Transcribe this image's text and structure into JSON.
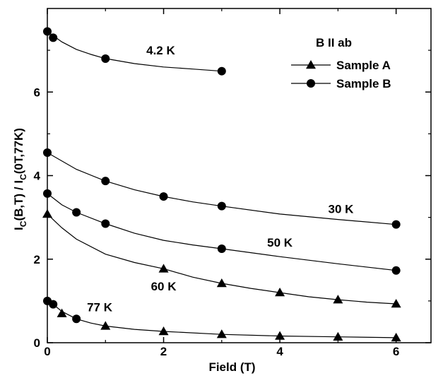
{
  "chart_data": {
    "type": "line",
    "title": "",
    "xlabel": "Field (T)",
    "ylabel_parts": [
      "I",
      "C",
      "(B,T) / I",
      "C",
      "(0T,77K)"
    ],
    "xlim": [
      0,
      6.6
    ],
    "ylim": [
      0,
      8
    ],
    "x_ticks": [
      0,
      2,
      4,
      6
    ],
    "x_tick_labels": [
      "0",
      "2",
      "4",
      "6"
    ],
    "y_ticks": [
      0,
      2,
      4,
      6
    ],
    "y_tick_labels": [
      "0",
      "2",
      "4",
      "6"
    ],
    "grid": false,
    "legend": {
      "title": "B II ab",
      "placement": "top-right",
      "entries": [
        {
          "label": "Sample A",
          "marker": "triangle"
        },
        {
          "label": "Sample B",
          "marker": "circle"
        }
      ]
    },
    "series": [
      {
        "label": "4.2 K",
        "marker": "circle",
        "x": [
          0,
          0.1,
          1,
          3
        ],
        "y": [
          7.45,
          7.3,
          6.8,
          6.5
        ],
        "curve": [
          [
            0,
            7.45
          ],
          [
            0.25,
            7.2
          ],
          [
            0.5,
            7.02
          ],
          [
            0.75,
            6.9
          ],
          [
            1,
            6.8
          ],
          [
            1.5,
            6.68
          ],
          [
            2,
            6.6
          ],
          [
            2.5,
            6.55
          ],
          [
            3,
            6.5
          ]
        ]
      },
      {
        "label": "30 K",
        "marker": "circle",
        "x": [
          0,
          1,
          2,
          3,
          6
        ],
        "y": [
          4.55,
          3.87,
          3.5,
          3.27,
          2.83
        ],
        "curve": [
          [
            0,
            4.55
          ],
          [
            0.5,
            4.15
          ],
          [
            1,
            3.87
          ],
          [
            1.5,
            3.66
          ],
          [
            2,
            3.5
          ],
          [
            2.5,
            3.37
          ],
          [
            3,
            3.27
          ],
          [
            4,
            3.08
          ],
          [
            5,
            2.95
          ],
          [
            6,
            2.83
          ]
        ]
      },
      {
        "label": "50 K",
        "marker": "circle",
        "x": [
          0,
          0.5,
          1,
          3,
          6
        ],
        "y": [
          3.57,
          3.12,
          2.85,
          2.25,
          1.73
        ],
        "curve": [
          [
            0,
            3.57
          ],
          [
            0.25,
            3.3
          ],
          [
            0.5,
            3.12
          ],
          [
            1,
            2.85
          ],
          [
            1.5,
            2.62
          ],
          [
            2,
            2.45
          ],
          [
            2.5,
            2.34
          ],
          [
            3,
            2.25
          ],
          [
            4,
            2.06
          ],
          [
            5,
            1.89
          ],
          [
            6,
            1.73
          ]
        ]
      },
      {
        "label": "60 K",
        "marker": "triangle",
        "x": [
          0,
          2,
          3,
          4,
          5,
          6
        ],
        "y": [
          3.08,
          1.77,
          1.42,
          1.2,
          1.03,
          0.93
        ],
        "curve": [
          [
            0,
            3.08
          ],
          [
            0.25,
            2.75
          ],
          [
            0.5,
            2.48
          ],
          [
            1,
            2.12
          ],
          [
            1.5,
            1.92
          ],
          [
            2,
            1.77
          ],
          [
            2.5,
            1.57
          ],
          [
            3,
            1.42
          ],
          [
            3.5,
            1.3
          ],
          [
            4,
            1.2
          ],
          [
            4.5,
            1.1
          ],
          [
            5,
            1.03
          ],
          [
            5.5,
            0.97
          ],
          [
            6,
            0.93
          ]
        ]
      },
      {
        "label": "77 K",
        "marker": "mixed",
        "x": [
          0,
          0.1,
          0.25,
          0.5,
          1,
          2,
          3,
          4,
          5,
          6
        ],
        "y": [
          1.0,
          0.92,
          0.7,
          0.57,
          0.4,
          0.27,
          0.2,
          0.16,
          0.14,
          0.12
        ],
        "markers": [
          "circle",
          "circle",
          "triangle",
          "circle",
          "triangle",
          "triangle",
          "triangle",
          "triangle",
          "triangle",
          "triangle"
        ],
        "curve": [
          [
            0,
            1.0
          ],
          [
            0.1,
            0.92
          ],
          [
            0.25,
            0.75
          ],
          [
            0.5,
            0.57
          ],
          [
            0.75,
            0.47
          ],
          [
            1,
            0.4
          ],
          [
            1.5,
            0.32
          ],
          [
            2,
            0.27
          ],
          [
            3,
            0.2
          ],
          [
            4,
            0.16
          ],
          [
            5,
            0.14
          ],
          [
            6,
            0.12
          ]
        ]
      }
    ]
  }
}
